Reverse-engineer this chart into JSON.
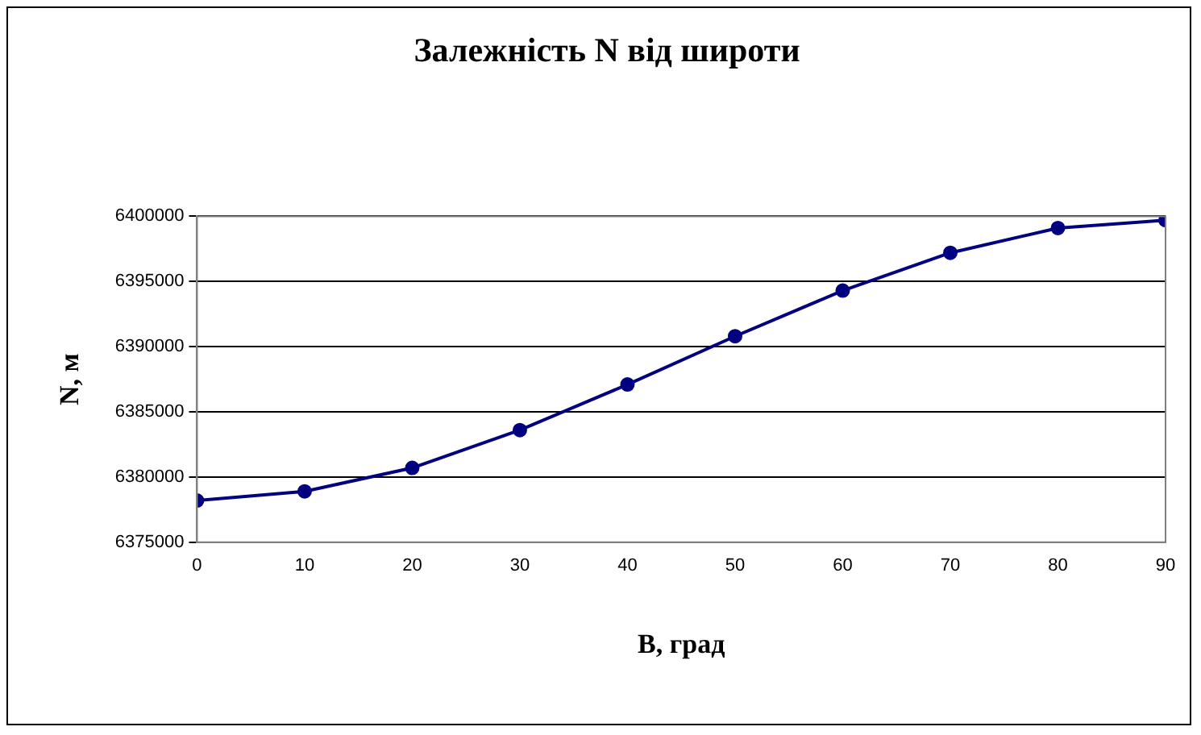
{
  "chart_data": {
    "type": "line",
    "title": "Залежність N від широти",
    "xlabel": "B, град",
    "ylabel": "N, м",
    "x": [
      0,
      10,
      20,
      30,
      40,
      50,
      60,
      70,
      80,
      90
    ],
    "series": [
      {
        "color": "#000080",
        "values": [
          6378200,
          6378900,
          6380700,
          6383600,
          6387100,
          6390800,
          6394300,
          6397200,
          6399100,
          6399700
        ]
      }
    ],
    "xlim": [
      0,
      90
    ],
    "xticks": [
      0,
      10,
      20,
      30,
      40,
      50,
      60,
      70,
      80,
      90
    ],
    "ylim": [
      6375000,
      6400000
    ],
    "yticks": [
      6375000,
      6380000,
      6385000,
      6390000,
      6395000,
      6400000
    ],
    "grid": "y",
    "legend": false,
    "marker": "circle",
    "line_style": "solid"
  }
}
